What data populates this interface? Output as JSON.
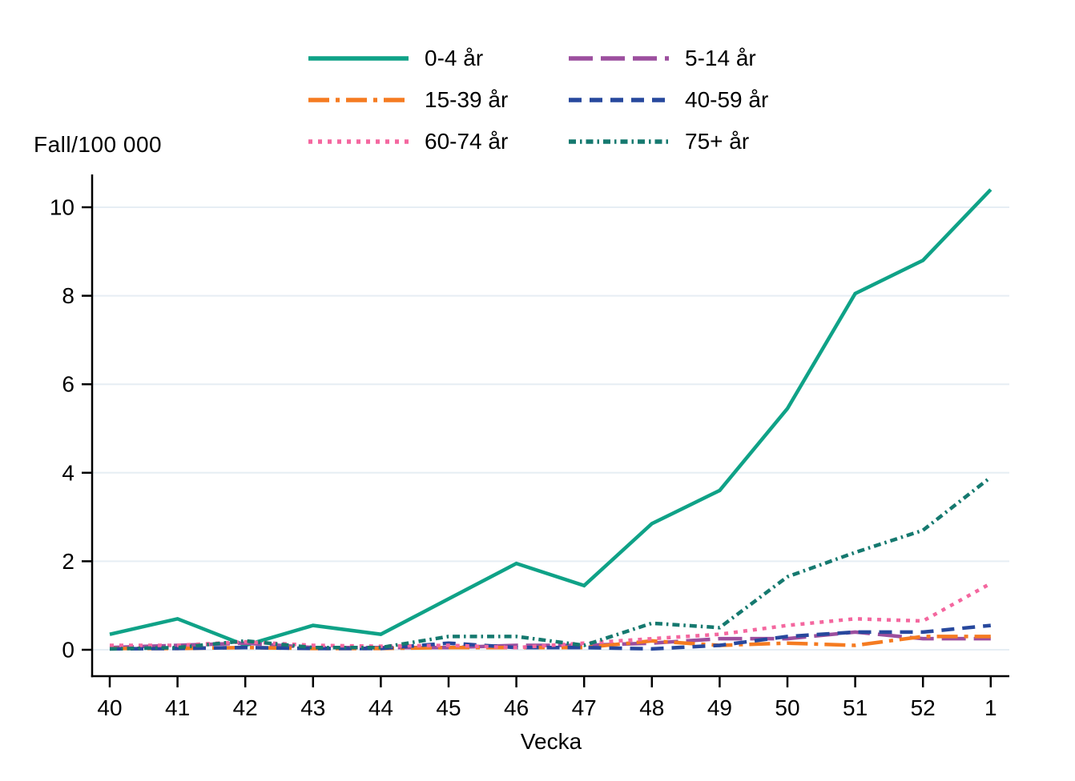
{
  "chart_data": {
    "type": "line",
    "title": "",
    "ylabel": "Fall/100 000",
    "xlabel": "Vecka",
    "categories": [
      "40",
      "41",
      "42",
      "43",
      "44",
      "45",
      "46",
      "47",
      "48",
      "49",
      "50",
      "51",
      "52",
      "1"
    ],
    "yticks": [
      0,
      2,
      4,
      6,
      8,
      10
    ],
    "ylim": [
      0,
      10.6
    ],
    "grid": "horizontal-only",
    "grid_color": "#e6eef4",
    "axis_color": "#000000",
    "legend_position": "top-center-two-columns",
    "series": [
      {
        "name": "0-4 år",
        "color": "#0fa287",
        "dash": "solid",
        "values": [
          0.35,
          0.7,
          0.1,
          0.55,
          0.35,
          1.15,
          1.95,
          1.45,
          2.85,
          3.6,
          5.45,
          8.05,
          8.8,
          10.4
        ]
      },
      {
        "name": "5-14 år",
        "color": "#9c4f9e",
        "dash": "longdash",
        "values": [
          0.05,
          0.1,
          0.15,
          0.05,
          0.05,
          0.05,
          0.1,
          0.1,
          0.15,
          0.25,
          0.25,
          0.4,
          0.25,
          0.25
        ]
      },
      {
        "name": "15-39 år",
        "color": "#f57b21",
        "dash": "dashdot",
        "values": [
          0.03,
          0.03,
          0.05,
          0.03,
          0.03,
          0.05,
          0.05,
          0.05,
          0.2,
          0.1,
          0.15,
          0.1,
          0.3,
          0.3
        ]
      },
      {
        "name": "40-59 år",
        "color": "#27489d",
        "dash": "dash",
        "values": [
          0.02,
          0.03,
          0.05,
          0.03,
          0.03,
          0.15,
          0.05,
          0.05,
          0.02,
          0.1,
          0.3,
          0.4,
          0.4,
          0.55
        ]
      },
      {
        "name": "60-74 år",
        "color": "#f4679f",
        "dash": "dot",
        "values": [
          0.1,
          0.1,
          0.18,
          0.1,
          0.08,
          0.1,
          0.05,
          0.15,
          0.25,
          0.35,
          0.55,
          0.7,
          0.65,
          1.5
        ]
      },
      {
        "name": "75+ år",
        "color": "#15796f",
        "dash": "dashdotdot",
        "values": [
          0.02,
          0.05,
          0.2,
          0.05,
          0.05,
          0.3,
          0.3,
          0.1,
          0.6,
          0.5,
          1.65,
          2.2,
          2.7,
          3.9
        ]
      }
    ]
  }
}
